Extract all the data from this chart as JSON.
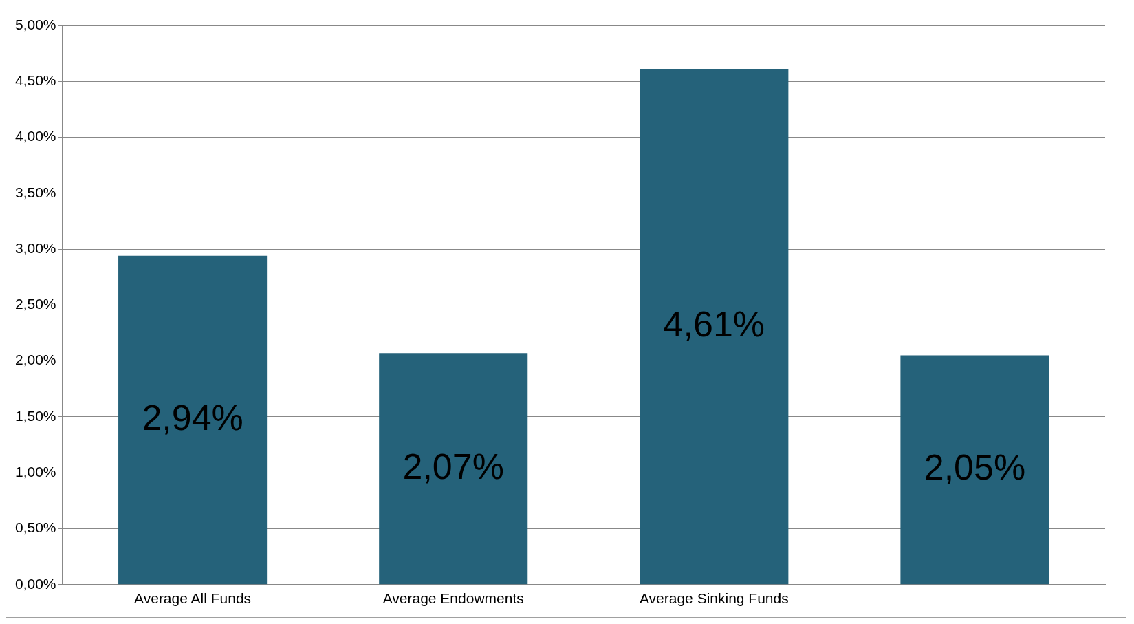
{
  "chart_data": {
    "type": "bar",
    "categories": [
      "Average All Funds",
      "Average Endowments",
      "Average Sinking Funds",
      null
    ],
    "values": [
      2.94,
      2.07,
      4.61,
      2.05
    ],
    "color": "#25627a",
    "value_labels": [
      "2,94%",
      "2,07%",
      "4,61%",
      "2,05%"
    ],
    "ylim": [
      0,
      5
    ],
    "yticks": [
      {
        "value": 0,
        "label": "0,00%"
      },
      {
        "value": 0.5,
        "label": "0,50%"
      },
      {
        "value": 1,
        "label": "1,00%"
      },
      {
        "value": 1.5,
        "label": "1,50%"
      },
      {
        "value": 2,
        "label": "2,00%"
      },
      {
        "value": 2.5,
        "label": "2,50%"
      },
      {
        "value": 3,
        "label": "3,00%"
      },
      {
        "value": 3.5,
        "label": "3,50%"
      },
      {
        "value": 4,
        "label": "4,00%"
      },
      {
        "value": 4.5,
        "label": "4,50%"
      },
      {
        "value": 5,
        "label": "5,00%"
      }
    ],
    "grid": "y",
    "legend": false
  }
}
